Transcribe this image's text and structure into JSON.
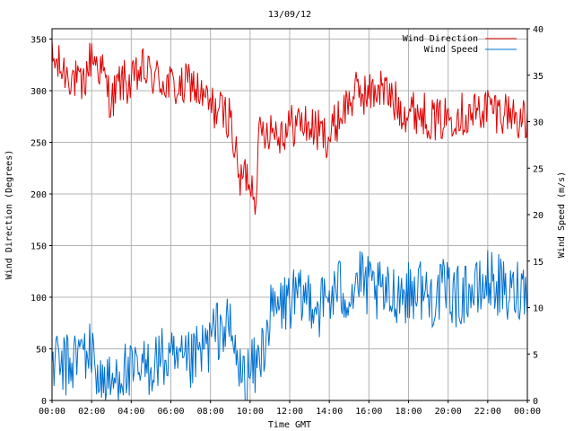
{
  "chart_data": {
    "type": "line",
    "title": "13/09/12",
    "xlabel": "Time GMT",
    "ylabel_left": "Wind Direction (Degrees)",
    "ylabel_right": "Wind Speed (m/s)",
    "x_ticks": [
      "00:00",
      "02:00",
      "04:00",
      "06:00",
      "08:00",
      "10:00",
      "12:00",
      "14:00",
      "16:00",
      "18:00",
      "20:00",
      "22:00",
      "00:00"
    ],
    "y_left_ticks": [
      0,
      50,
      100,
      150,
      200,
      250,
      300,
      350
    ],
    "y_right_ticks": [
      0,
      5,
      10,
      15,
      20,
      25,
      30,
      35,
      40
    ],
    "xlim_hours": [
      0,
      24
    ],
    "ylim_left": [
      0,
      360
    ],
    "ylim_right": [
      0,
      40
    ],
    "grid": true,
    "legend_position": "top-right",
    "series": [
      {
        "name": "Wind Direction",
        "axis": "left",
        "color": "#e00000",
        "x_hours": [
          0,
          0.5,
          1,
          1.5,
          2,
          2.5,
          3,
          3.5,
          4,
          4.5,
          5,
          5.5,
          6,
          6.5,
          7,
          7.5,
          8,
          8.5,
          9,
          9.25,
          9.5,
          9.75,
          10,
          10.25,
          10.5,
          11,
          11.5,
          12,
          12.5,
          13,
          13.5,
          14,
          14.5,
          15,
          15.5,
          16,
          16.5,
          17,
          17.5,
          18,
          18.5,
          19,
          19.5,
          20,
          20.5,
          21,
          21.5,
          22,
          22.5,
          23,
          23.5,
          24
        ],
        "values": [
          330,
          320,
          315,
          300,
          335,
          320,
          290,
          310,
          305,
          320,
          315,
          310,
          305,
          300,
          310,
          295,
          285,
          280,
          275,
          240,
          210,
          220,
          215,
          200,
          260,
          265,
          260,
          265,
          270,
          265,
          260,
          255,
          275,
          290,
          300,
          295,
          305,
          295,
          285,
          280,
          280,
          275,
          270,
          275,
          280,
          275,
          280,
          285,
          280,
          280,
          275,
          265
        ]
      },
      {
        "name": "Wind Speed",
        "axis": "right",
        "color": "#0070d0",
        "x_hours": [
          0,
          0.5,
          1,
          1.5,
          2,
          2.5,
          3,
          3.5,
          4,
          4.5,
          5,
          5.5,
          6,
          6.5,
          7,
          7.5,
          8,
          8.5,
          9,
          9.25,
          9.5,
          9.75,
          10,
          10.25,
          10.5,
          11,
          11.5,
          12,
          12.5,
          13,
          13.5,
          14,
          14.5,
          15,
          15.5,
          16,
          16.5,
          17,
          17.5,
          18,
          18.5,
          19,
          19.5,
          20,
          20.5,
          21,
          21.5,
          22,
          22.5,
          23,
          23.5,
          24
        ],
        "values": [
          4.5,
          3.5,
          4,
          5.5,
          5,
          2,
          1.5,
          3.5,
          2.5,
          3,
          4,
          4.5,
          4,
          3.5,
          4,
          5,
          6.5,
          8,
          7.5,
          5,
          3,
          2,
          3,
          3.5,
          4.5,
          9,
          10,
          11,
          10.5,
          11.5,
          10,
          11,
          12,
          11.5,
          13,
          12,
          11.5,
          11,
          12,
          11.5,
          12.5,
          11,
          11.5,
          12,
          11,
          12,
          11.5,
          13,
          12.5,
          11,
          12,
          12.5
        ]
      }
    ]
  }
}
